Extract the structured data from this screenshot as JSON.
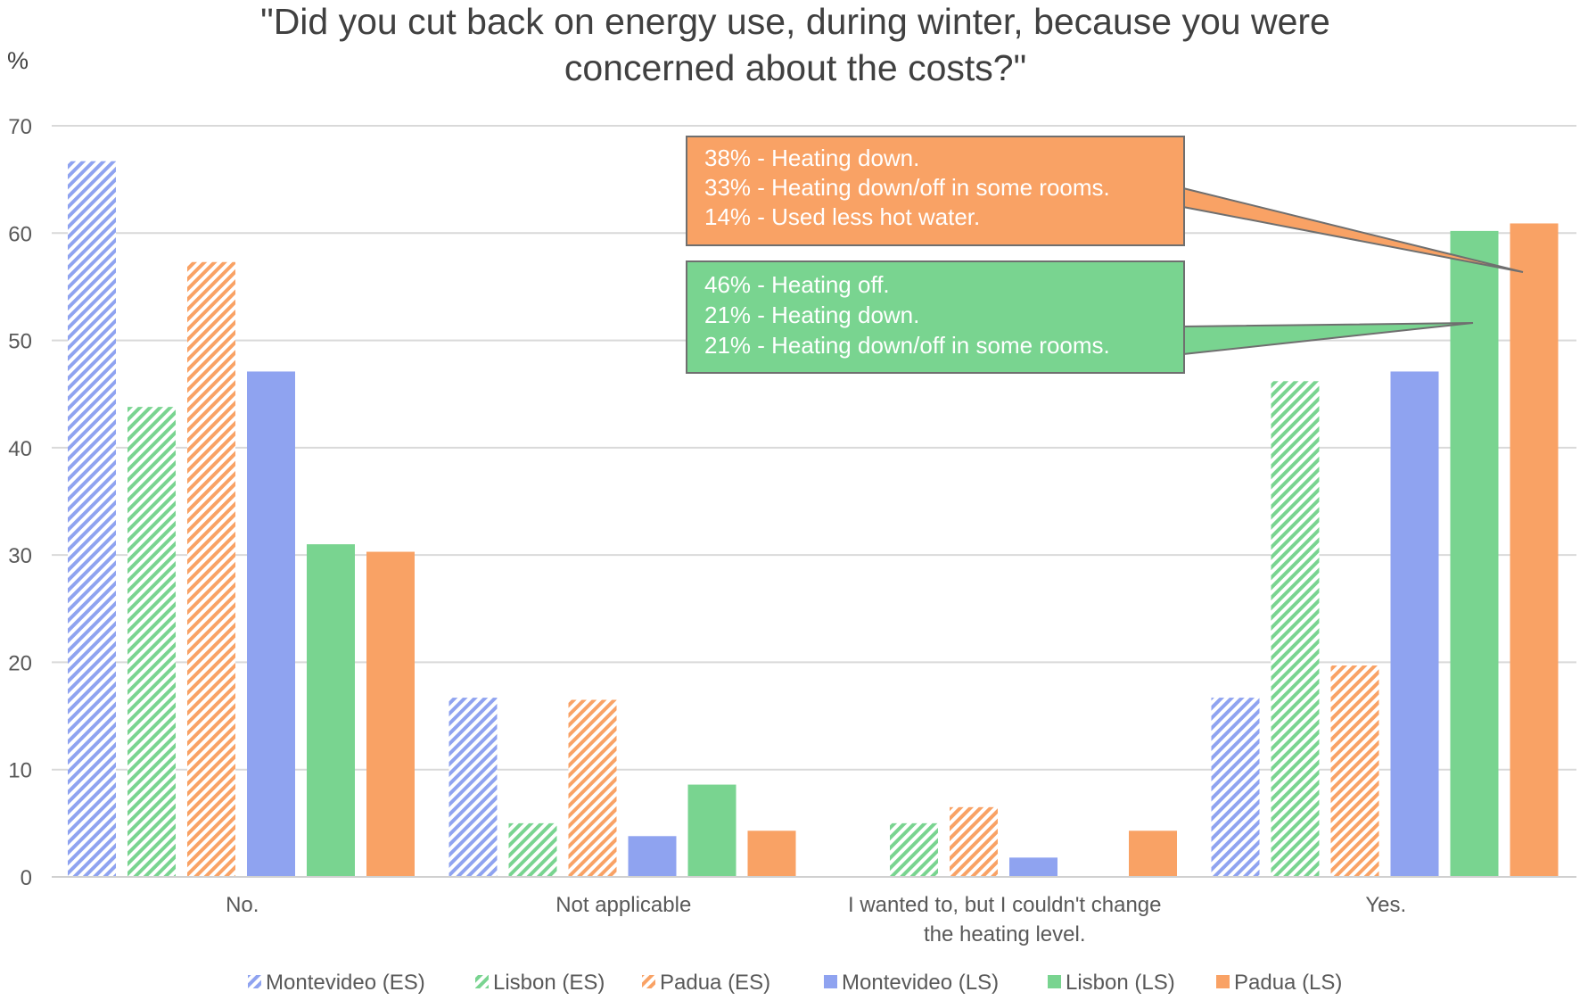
{
  "chart_data": {
    "type": "bar",
    "title": [
      "\"Did you cut back on energy use, during winter, because you were",
      "concerned about the costs?\""
    ],
    "ylabel": "%",
    "ylim": [
      0,
      70
    ],
    "yticks": [
      0,
      10,
      20,
      30,
      40,
      50,
      60,
      70
    ],
    "grid": true,
    "legend_position": "bottom",
    "categories": [
      [
        "No."
      ],
      [
        "Not applicable"
      ],
      [
        "I wanted to, but I couldn't change",
        "the heating level."
      ],
      [
        "Yes."
      ]
    ],
    "series": [
      {
        "name": "Montevideo (ES)",
        "color": "#8FA3F0",
        "pattern": "hatch",
        "values": [
          66.7,
          16.7,
          0,
          16.7
        ]
      },
      {
        "name": "Lisbon (ES)",
        "color": "#79D490",
        "pattern": "hatch",
        "values": [
          43.8,
          5.0,
          5.0,
          46.2
        ]
      },
      {
        "name": "Padua (ES)",
        "color": "#F9A265",
        "pattern": "hatch",
        "values": [
          57.3,
          16.5,
          6.5,
          19.7
        ]
      },
      {
        "name": "Montevideo (LS)",
        "color": "#8FA3F0",
        "pattern": "solid",
        "values": [
          47.1,
          3.8,
          1.8,
          47.1
        ]
      },
      {
        "name": "Lisbon (LS)",
        "color": "#79D490",
        "pattern": "solid",
        "values": [
          31.0,
          8.6,
          0,
          60.2
        ]
      },
      {
        "name": "Padua (LS)",
        "color": "#F9A265",
        "pattern": "solid",
        "values": [
          30.3,
          4.3,
          4.3,
          60.9
        ]
      }
    ],
    "annotations": [
      {
        "series": "Padua (LS)",
        "category": "Yes.",
        "color": "#F9A265",
        "lines": [
          "38% - Heating down.",
          "33% - Heating down/off in some rooms.",
          "14% - Used less hot water."
        ]
      },
      {
        "series": "Lisbon (LS)",
        "category": "Yes.",
        "color": "#79D490",
        "lines": [
          "46% - Heating off.",
          "21% - Heating down.",
          "21% - Heating down/off in some rooms."
        ]
      }
    ]
  }
}
